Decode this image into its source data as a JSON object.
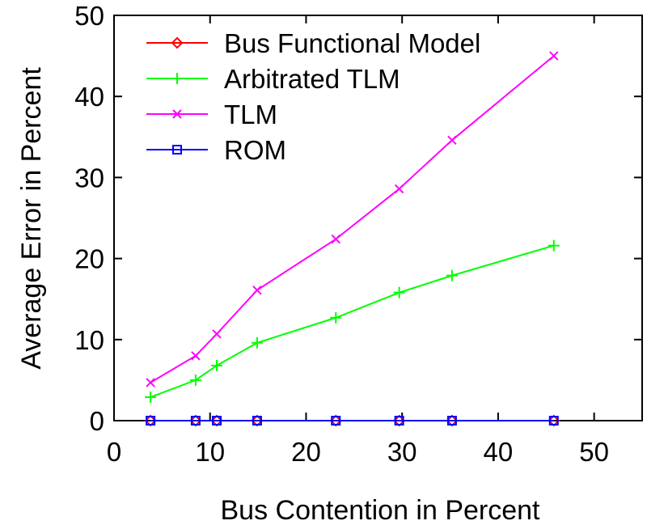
{
  "chart_data": {
    "type": "line",
    "xlabel": "Bus Contention in Percent",
    "ylabel": "Average Error in Percent",
    "xlim": [
      0,
      55
    ],
    "ylim": [
      0,
      50
    ],
    "xticks": [
      0,
      10,
      20,
      30,
      40,
      50
    ],
    "yticks": [
      0,
      10,
      20,
      30,
      40,
      50
    ],
    "grid": false,
    "legend_position": "top-left",
    "x": [
      3.8,
      8.5,
      10.7,
      14.9,
      23.1,
      29.7,
      35.2,
      45.8
    ],
    "series": [
      {
        "name": "Bus Functional Model",
        "color": "#ff0000",
        "marker": "diamond",
        "values": [
          0,
          0,
          0,
          0,
          0,
          0,
          0,
          0
        ]
      },
      {
        "name": "Arbitrated TLM",
        "color": "#00ff00",
        "marker": "plus",
        "values": [
          2.9,
          5.0,
          6.8,
          9.6,
          12.7,
          15.8,
          17.9,
          21.6
        ]
      },
      {
        "name": "TLM",
        "color": "#ff00ff",
        "marker": "cross",
        "values": [
          4.7,
          8.0,
          10.7,
          16.1,
          22.4,
          28.6,
          34.6,
          45.0
        ]
      },
      {
        "name": "ROM",
        "color": "#0000ff",
        "marker": "square",
        "values": [
          0,
          0,
          0,
          0,
          0,
          0,
          0,
          0
        ]
      }
    ]
  }
}
